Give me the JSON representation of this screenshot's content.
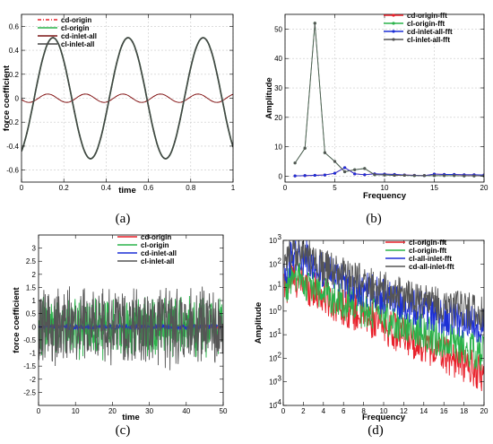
{
  "chart_data": [
    {
      "id": "a",
      "type": "line",
      "caption": "(a)",
      "xlabel": "time",
      "ylabel": "force coefficient",
      "xlim": [
        0,
        1
      ],
      "ylim": [
        -0.7,
        0.7
      ],
      "xticks": [
        0,
        0.2,
        0.4,
        0.6,
        0.8,
        1
      ],
      "xtick_labels": [
        "0",
        "0.2",
        "0.4",
        "0.6",
        "0.8",
        "1"
      ],
      "yticks": [
        -0.6,
        -0.4,
        -0.2,
        0,
        0.2,
        0.4,
        0.6
      ],
      "ytick_labels": [
        "-0.6",
        "-0.4",
        "-0.2",
        "0",
        "0.2",
        "0.4",
        "0.6"
      ],
      "grid": true,
      "legend_position": "top-left",
      "description": "cl oscillates with amplitude ~0.5 and period ~0.36; cd oscillates with amplitude ~0.04 at double frequency",
      "series": [
        {
          "name": "cd-origin",
          "color": "#e8202a",
          "style": "dashdot",
          "x": [
            0,
            0.045,
            0.09,
            0.135,
            0.18,
            0.225,
            0.27,
            0.315,
            0.36,
            0.405,
            0.45,
            0.495,
            0.54,
            0.585,
            0.63,
            0.675,
            0.72,
            0.765,
            0.81,
            0.855,
            0.9,
            0.945,
            0.99,
            1
          ],
          "y": [
            0.0,
            -0.03,
            0.0,
            0.03,
            0.0,
            -0.03,
            0.0,
            0.03,
            0.0,
            -0.03,
            0.0,
            0.03,
            0.0,
            -0.03,
            0.0,
            0.03,
            0.0,
            -0.03,
            0.0,
            0.03,
            0.0,
            -0.03,
            0.0,
            0.0
          ]
        },
        {
          "name": "cl-origin",
          "color": "#2ab34a",
          "style": "solid",
          "x": [
            0,
            0.05,
            0.1,
            0.15,
            0.2,
            0.25,
            0.3,
            0.35,
            0.4,
            0.45,
            0.5,
            0.55,
            0.6,
            0.65,
            0.7,
            0.75,
            0.8,
            0.85,
            0.9,
            0.95,
            1
          ],
          "y": [
            -0.47,
            -0.05,
            0.4,
            0.52,
            0.22,
            -0.25,
            -0.5,
            -0.35,
            0.1,
            0.48,
            0.5,
            0.13,
            -0.33,
            -0.5,
            -0.25,
            0.2,
            0.48,
            0.46,
            0.08,
            -0.38,
            -0.38
          ]
        },
        {
          "name": "cd-inlet-all",
          "color": "#7a1414",
          "style": "solid",
          "x": [
            0,
            0.045,
            0.09,
            0.135,
            0.18,
            0.225,
            0.27,
            0.315,
            0.36,
            0.405,
            0.45,
            0.495,
            0.54,
            0.585,
            0.63,
            0.675,
            0.72,
            0.765,
            0.81,
            0.855,
            0.9,
            0.945,
            0.99,
            1
          ],
          "y": [
            0.0,
            -0.03,
            0.0,
            0.03,
            0.0,
            -0.03,
            0.0,
            0.03,
            0.0,
            -0.03,
            0.0,
            0.03,
            0.0,
            -0.03,
            0.0,
            0.03,
            0.0,
            -0.03,
            0.0,
            0.03,
            0.0,
            -0.03,
            0.0,
            0.0
          ]
        },
        {
          "name": "cl-inlet-all",
          "color": "#444444",
          "style": "solid-marker",
          "x": [
            0,
            0.05,
            0.1,
            0.15,
            0.2,
            0.25,
            0.3,
            0.35,
            0.4,
            0.45,
            0.5,
            0.55,
            0.6,
            0.65,
            0.7,
            0.75,
            0.8,
            0.85,
            0.9,
            0.95,
            1
          ],
          "y": [
            -0.47,
            -0.05,
            0.4,
            0.52,
            0.22,
            -0.25,
            -0.5,
            -0.35,
            0.1,
            0.48,
            0.5,
            0.13,
            -0.33,
            -0.5,
            -0.25,
            0.2,
            0.48,
            0.46,
            0.08,
            -0.38,
            -0.38
          ]
        }
      ]
    },
    {
      "id": "b",
      "type": "line",
      "caption": "(b)",
      "xlabel": "Frequency",
      "ylabel": "Amplitude",
      "xlim": [
        0,
        20
      ],
      "ylim": [
        -2,
        55
      ],
      "xticks": [
        0,
        5,
        10,
        15,
        20
      ],
      "xtick_labels": [
        "0",
        "5",
        "10",
        "15",
        "20"
      ],
      "yticks": [
        0,
        10,
        20,
        30,
        40,
        50
      ],
      "ytick_labels": [
        "0",
        "10",
        "20",
        "30",
        "40",
        "50"
      ],
      "grid": true,
      "legend_position": "top-right",
      "series": [
        {
          "name": "cd-origin-fft",
          "color": "#e8202a",
          "x": [
            1,
            2,
            3,
            4,
            5,
            6,
            7,
            8,
            9,
            10,
            11,
            12,
            13,
            14,
            15,
            16,
            17,
            18,
            19,
            20
          ],
          "y": [
            0.1,
            0.2,
            0.3,
            0.4,
            1.0,
            2.9,
            0.8,
            0.5,
            0.8,
            0.7,
            0.6,
            0.4,
            0.3,
            0.2,
            0.7,
            0.6,
            0.6,
            0.5,
            0.5,
            0.4
          ]
        },
        {
          "name": "cl-origin-fft",
          "color": "#2ab34a",
          "x": [
            1,
            2,
            3,
            4,
            5,
            6,
            7,
            8,
            9,
            10,
            11,
            12,
            13,
            14,
            15,
            16,
            17,
            18,
            19,
            20
          ],
          "y": [
            4.5,
            9.5,
            52,
            8,
            5,
            1.5,
            2.2,
            2.6,
            0.5,
            0.4,
            0.3,
            0.3,
            0.2,
            0.2,
            0.2,
            0.2,
            0.2,
            0.1,
            0.1,
            0.1
          ]
        },
        {
          "name": "cd-inlet-all-fft",
          "color": "#1c2fd6",
          "x": [
            1,
            2,
            3,
            4,
            5,
            6,
            7,
            8,
            9,
            10,
            11,
            12,
            13,
            14,
            15,
            16,
            17,
            18,
            19,
            20
          ],
          "y": [
            0.1,
            0.2,
            0.3,
            0.4,
            1.0,
            2.9,
            0.8,
            0.5,
            0.8,
            0.7,
            0.6,
            0.4,
            0.3,
            0.2,
            0.7,
            0.6,
            0.6,
            0.5,
            0.5,
            0.4
          ]
        },
        {
          "name": "cl-inlet-all-fft",
          "color": "#555555",
          "x": [
            1,
            2,
            3,
            4,
            5,
            6,
            7,
            8,
            9,
            10,
            11,
            12,
            13,
            14,
            15,
            16,
            17,
            18,
            19,
            20
          ],
          "y": [
            4.5,
            9.5,
            52,
            8,
            5,
            1.5,
            2.2,
            2.6,
            0.5,
            0.4,
            0.3,
            0.3,
            0.2,
            0.2,
            0.2,
            0.2,
            0.2,
            0.1,
            0.1,
            0.1
          ]
        }
      ]
    },
    {
      "id": "c",
      "type": "line",
      "caption": "(c)",
      "xlabel": "time",
      "ylabel": "force coefficient",
      "xlim": [
        0,
        50
      ],
      "ylim": [
        -3,
        3.5
      ],
      "xticks": [
        0,
        10,
        20,
        30,
        40,
        50
      ],
      "xtick_labels": [
        "0",
        "10",
        "20",
        "30",
        "40",
        "50"
      ],
      "yticks": [
        -2.5,
        -2,
        -1.5,
        -1,
        -0.5,
        0,
        0.5,
        1,
        1.5,
        2,
        2.5,
        3
      ],
      "ytick_labels": [
        "-2.5",
        "-2",
        "-1.5",
        "-1",
        "-0.5",
        "0",
        "0.5",
        "1",
        "1.5",
        "2",
        "2.5",
        "3"
      ],
      "grid": false,
      "legend_position": "top-right",
      "description": "broadband noisy signals; cl fluctuates roughly within ±1.5 (inlet-all up to ±2.5), cd stays near 0",
      "series": [
        {
          "name": "cd-origin",
          "color": "#e8202a",
          "amplitude": 0.1,
          "mean": 0
        },
        {
          "name": "cl-origin",
          "color": "#2ab34a",
          "amplitude": 1.3,
          "mean": 0
        },
        {
          "name": "cd-inlet-all",
          "color": "#1c2fd6",
          "amplitude": 0.12,
          "mean": 0
        },
        {
          "name": "cl-inlet-all",
          "color": "#555555",
          "amplitude": 1.7,
          "mean": 0
        }
      ]
    },
    {
      "id": "d",
      "type": "line",
      "caption": "(d)",
      "xlabel": "Frequency",
      "ylabel": "Amplitude",
      "xscale": "linear",
      "yscale": "log",
      "xlim": [
        0,
        20
      ],
      "ylim": [
        0.0001,
        1000
      ],
      "xticks": [
        0,
        2,
        4,
        6,
        8,
        10,
        12,
        14,
        16,
        18,
        20
      ],
      "xtick_labels": [
        "0",
        "2",
        "4",
        "6",
        "8",
        "10",
        "12",
        "14",
        "16",
        "18",
        "20"
      ],
      "ytick_exponents": [
        -4,
        -3,
        -2,
        -1,
        0,
        1,
        2,
        3
      ],
      "ytick_labels": [
        "10",
        "10",
        "10",
        "10",
        "10",
        "10",
        "10",
        "10"
      ],
      "grid": false,
      "legend_position": "top-right",
      "description": "noisy decaying spectra; peak near f≈1-2 then decay toward high frequency",
      "series": [
        {
          "name": "cl-origin-fft",
          "color": "#e8202a",
          "x": [
            0.3,
            1,
            2,
            3,
            4,
            6,
            8,
            10,
            12,
            14,
            16,
            18,
            20
          ],
          "y": [
            10,
            25,
            15,
            8,
            4,
            1.5,
            0.6,
            0.25,
            0.08,
            0.04,
            0.015,
            0.006,
            0.002
          ]
        },
        {
          "name": "cl-origin-fft",
          "color": "#2ab34a",
          "x": [
            0.3,
            1,
            2,
            3,
            4,
            6,
            8,
            10,
            12,
            14,
            16,
            18,
            20
          ],
          "y": [
            12,
            30,
            18,
            10,
            6,
            2.5,
            1.2,
            0.6,
            0.25,
            0.12,
            0.06,
            0.03,
            0.015
          ]
        },
        {
          "name": "cl-all-inlet-fft",
          "color": "#1c2fd6",
          "x": [
            0.3,
            1,
            2,
            3,
            4,
            6,
            8,
            10,
            12,
            14,
            16,
            18,
            20
          ],
          "y": [
            80,
            300,
            200,
            100,
            55,
            20,
            8,
            4,
            2,
            1.1,
            0.6,
            0.35,
            0.25
          ]
        },
        {
          "name": "cd-all-inlet-fft",
          "color": "#555555",
          "x": [
            0.3,
            1,
            2,
            3,
            4,
            6,
            8,
            10,
            12,
            14,
            16,
            18,
            20
          ],
          "y": [
            100,
            600,
            300,
            150,
            80,
            30,
            15,
            8,
            4,
            2.5,
            1.6,
            1.1,
            0.8
          ]
        }
      ]
    }
  ]
}
